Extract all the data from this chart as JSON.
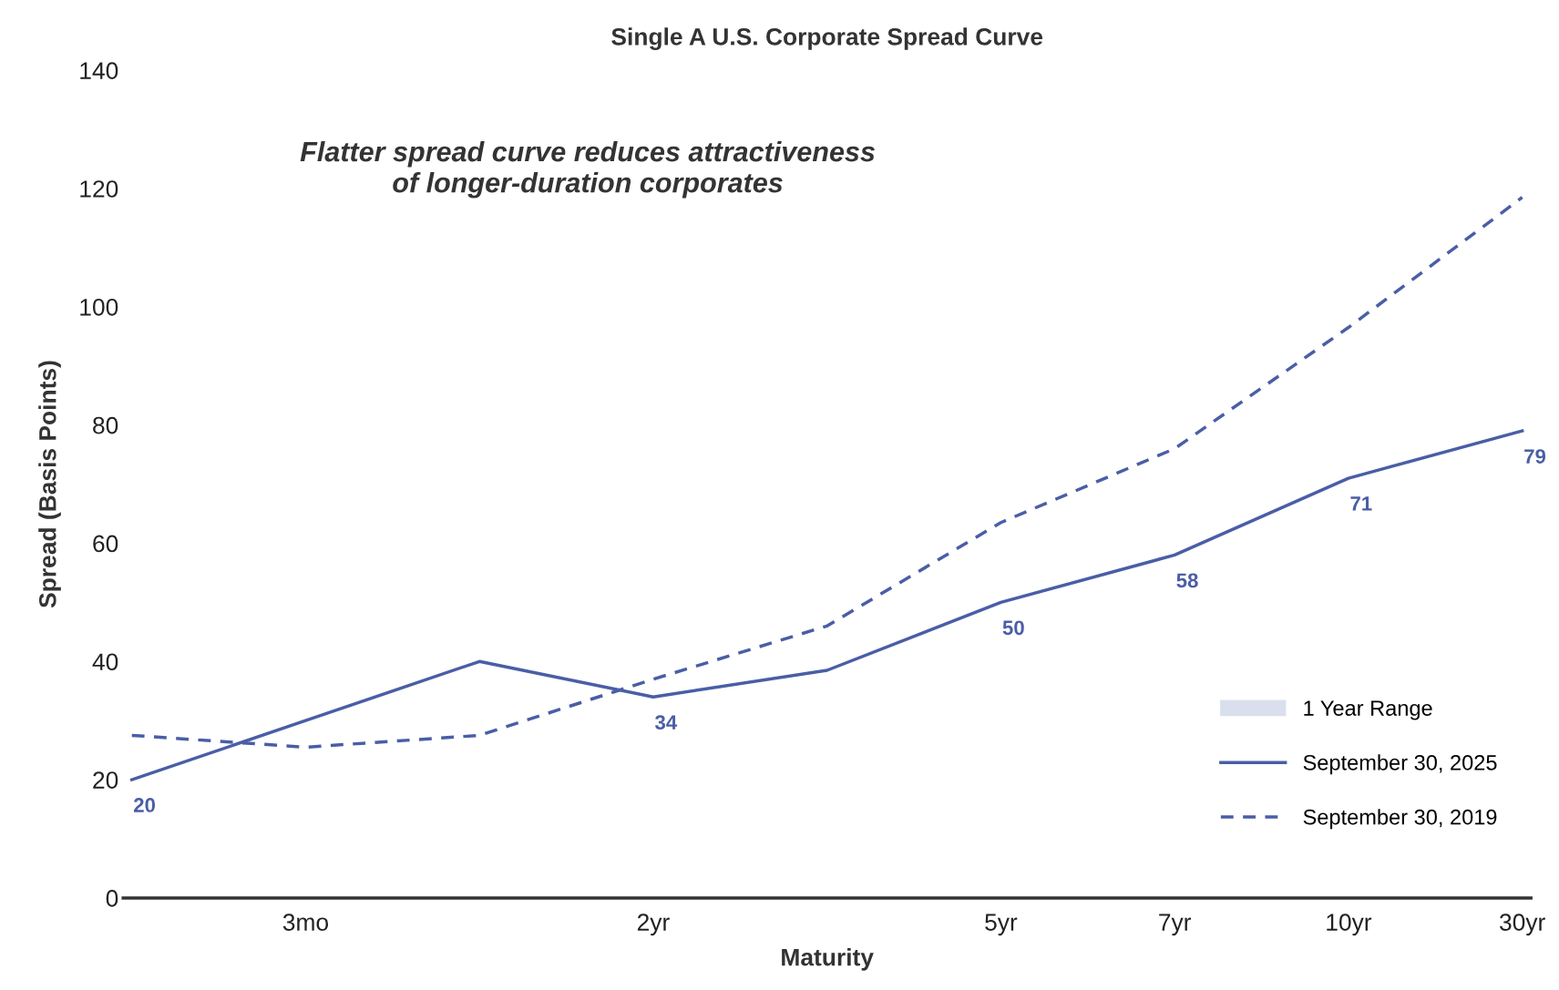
{
  "chart_data": {
    "type": "line",
    "title": "Single A U.S. Corporate Spread Curve",
    "xlabel": "Maturity",
    "ylabel": "Spread (Basis Points)",
    "categories": [
      null,
      "3mo",
      null,
      "2yr",
      null,
      "5yr",
      "7yr",
      "10yr",
      "30yr"
    ],
    "series": [
      {
        "name": "1 Year Range",
        "type": "area",
        "color": "#d9dfec",
        "values": [
          null,
          null,
          null,
          null,
          null,
          null,
          null,
          null,
          null
        ]
      },
      {
        "name": "September 30, 2025",
        "color": "#4a5ea6",
        "line_style": "solid",
        "values": [
          20,
          30,
          40,
          34,
          38.5,
          50,
          58,
          71,
          79
        ],
        "value_labels": [
          "20",
          null,
          null,
          "34",
          null,
          "50",
          "58",
          "71",
          "79"
        ]
      },
      {
        "name": "September 30, 2019",
        "color": "#4a5ea6",
        "line_style": "dashed",
        "values": [
          27.5,
          25.5,
          27.5,
          37,
          46,
          63.5,
          76,
          96.5,
          118.5
        ]
      }
    ],
    "ylim": [
      0,
      140
    ],
    "yticks": [
      0,
      20,
      40,
      60,
      80,
      100,
      120,
      140
    ],
    "grid": false,
    "legend": "bottom right",
    "marker": "none",
    "annotations": [
      "Flatter spread curve reduces attractiveness\nof longer-duration corporates"
    ]
  }
}
